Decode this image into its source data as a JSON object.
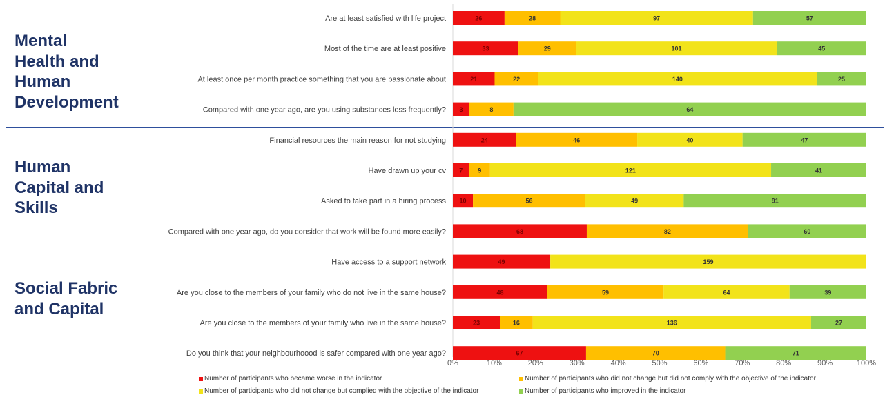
{
  "sections": [
    {
      "title": "Mental\nHealth and\nHuman\nDevelopment"
    },
    {
      "title": "Human\nCapital and\nSkills"
    },
    {
      "title": "Social Fabric\nand Capital"
    }
  ],
  "colors": {
    "worse": "#ee1111",
    "no_change_not_comply": "#ffbf00",
    "no_change_comply": "#f2e31a",
    "improved": "#92d050"
  },
  "chart_data": {
    "type": "bar",
    "orientation": "horizontal",
    "stacked": "percent",
    "xlim": [
      0,
      100
    ],
    "x_ticks": [
      "0%",
      "10%",
      "20%",
      "30%",
      "40%",
      "50%",
      "60%",
      "70%",
      "80%",
      "90%",
      "100%"
    ],
    "categories": [
      "Are at least satisfied with life project",
      "Most of the time are at least positive",
      "At least once per month practice something that you are passionate about",
      "Compared with one year ago, are you using substances less frequently?",
      "Financial resources the main reason for not studying",
      "Have drawn up your cv",
      "Asked to take part in a hiring process",
      "Compared with one year ago, do you consider that work will be found more easily?",
      "Have access to a support network",
      "Are you close to the members of your family who do not live in the same house?",
      "Are you close to the members of your family who live in the same house?",
      "Do you think that your neighbourhoood is safer compared with one year ago?"
    ],
    "series": [
      {
        "name": "Number of participants who became worse in the indicator",
        "values": [
          26,
          33,
          21,
          3,
          24,
          7,
          10,
          68,
          49,
          48,
          23,
          67
        ]
      },
      {
        "name": "Number of participants who did not change but did not comply with the objective of the indicator",
        "values": [
          28,
          29,
          22,
          8,
          46,
          9,
          56,
          82,
          0,
          59,
          16,
          70
        ]
      },
      {
        "name": "Number of participants who did not change but complied with the objective of the indicator",
        "values": [
          97,
          101,
          140,
          0,
          40,
          121,
          49,
          0,
          159,
          64,
          136,
          0
        ]
      },
      {
        "name": "Number of participants who improved in the indicator",
        "values": [
          57,
          45,
          25,
          64,
          47,
          41,
          91,
          60,
          0,
          39,
          27,
          71
        ]
      }
    ],
    "legend_position": "bottom",
    "grid": false
  }
}
